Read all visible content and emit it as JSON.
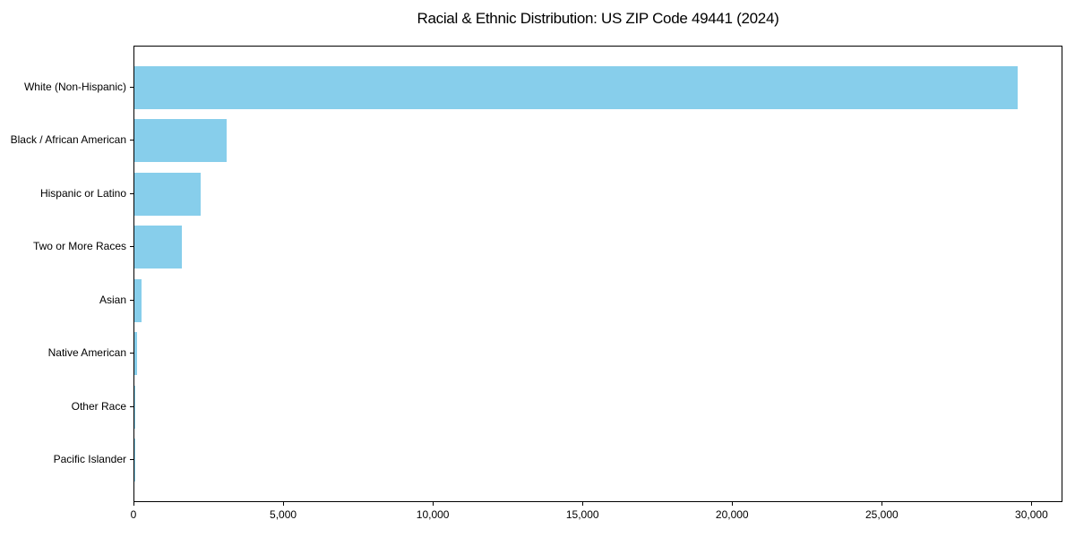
{
  "chart_data": {
    "type": "bar",
    "orientation": "horizontal",
    "title": "Racial & Ethnic Distribution: US ZIP Code 49441 (2024)",
    "categories": [
      "White (Non-Hispanic)",
      "Black / African American",
      "Hispanic or Latino",
      "Two or More Races",
      "Asian",
      "Native American",
      "Other Race",
      "Pacific Islander"
    ],
    "values": [
      29500,
      3080,
      2210,
      1580,
      240,
      100,
      20,
      8
    ],
    "xlabel": "",
    "ylabel": "",
    "xlim": [
      0,
      30975
    ],
    "x_ticks": [
      0,
      5000,
      10000,
      15000,
      20000,
      25000,
      30000
    ],
    "x_tick_labels": [
      "0",
      "5,000",
      "10,000",
      "15,000",
      "20,000",
      "25,000",
      "30,000"
    ],
    "bar_color": "#87CEEB",
    "axis_color": "#000000",
    "text_color": "#000000",
    "grid": false,
    "legend": false
  }
}
